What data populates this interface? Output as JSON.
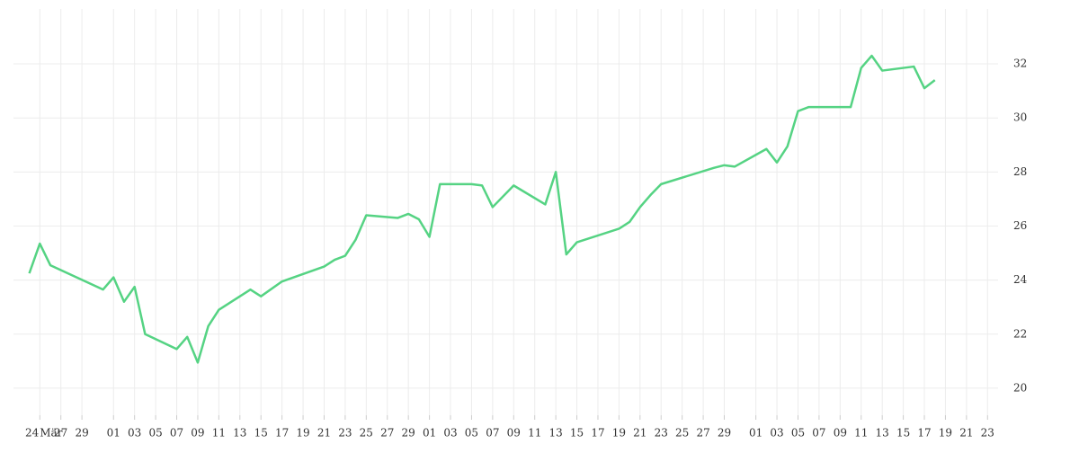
{
  "chart_data": {
    "type": "line",
    "x": [
      -1,
      0,
      1,
      6,
      7,
      8,
      9,
      10,
      13,
      14,
      15,
      16,
      17,
      20,
      21,
      23,
      27,
      28,
      29,
      30,
      31,
      34,
      35,
      36,
      37,
      38,
      41,
      42,
      43,
      45,
      48,
      49,
      50,
      51,
      55,
      56,
      57,
      58,
      59,
      64,
      65,
      66,
      69,
      70,
      71,
      72,
      73,
      77,
      78,
      79,
      80,
      83,
      84,
      85
    ],
    "series": [
      {
        "color": "#55d383",
        "values": [
          24.25,
          25.35,
          24.55,
          23.65,
          24.1,
          23.2,
          23.75,
          22.0,
          21.45,
          21.9,
          20.95,
          22.3,
          22.9,
          23.65,
          23.4,
          23.95,
          24.5,
          24.75,
          24.9,
          25.5,
          26.4,
          26.3,
          26.45,
          26.25,
          25.6,
          27.55,
          27.55,
          27.5,
          26.7,
          27.5,
          26.8,
          28.0,
          24.95,
          25.4,
          25.9,
          26.15,
          26.7,
          27.15,
          27.55,
          28.15,
          28.25,
          28.2,
          28.85,
          28.35,
          28.95,
          30.25,
          30.4,
          30.4,
          31.85,
          32.3,
          31.75,
          31.9,
          31.1,
          31.4
        ]
      }
    ],
    "x_year_label": "24",
    "xlim": [
      -2.5,
      91
    ],
    "xticks": [
      {
        "value": 0,
        "label": "Mär"
      },
      {
        "value": 2,
        "label": "27"
      },
      {
        "value": 4,
        "label": "29"
      },
      {
        "value": 7,
        "label": "01"
      },
      {
        "value": 9,
        "label": "03"
      },
      {
        "value": 11,
        "label": "05"
      },
      {
        "value": 13,
        "label": "07"
      },
      {
        "value": 15,
        "label": "09"
      },
      {
        "value": 17,
        "label": "11"
      },
      {
        "value": 19,
        "label": "13"
      },
      {
        "value": 21,
        "label": "15"
      },
      {
        "value": 23,
        "label": "17"
      },
      {
        "value": 25,
        "label": "19"
      },
      {
        "value": 27,
        "label": "21"
      },
      {
        "value": 29,
        "label": "23"
      },
      {
        "value": 31,
        "label": "25"
      },
      {
        "value": 33,
        "label": "27"
      },
      {
        "value": 35,
        "label": "29"
      },
      {
        "value": 37,
        "label": "01"
      },
      {
        "value": 39,
        "label": "03"
      },
      {
        "value": 41,
        "label": "05"
      },
      {
        "value": 43,
        "label": "07"
      },
      {
        "value": 45,
        "label": "09"
      },
      {
        "value": 47,
        "label": "11"
      },
      {
        "value": 49,
        "label": "13"
      },
      {
        "value": 51,
        "label": "15"
      },
      {
        "value": 53,
        "label": "17"
      },
      {
        "value": 55,
        "label": "19"
      },
      {
        "value": 57,
        "label": "21"
      },
      {
        "value": 59,
        "label": "23"
      },
      {
        "value": 61,
        "label": "25"
      },
      {
        "value": 63,
        "label": "27"
      },
      {
        "value": 65,
        "label": "29"
      },
      {
        "value": 68,
        "label": "01"
      },
      {
        "value": 70,
        "label": "03"
      },
      {
        "value": 72,
        "label": "05"
      },
      {
        "value": 74,
        "label": "07"
      },
      {
        "value": 76,
        "label": "09"
      },
      {
        "value": 78,
        "label": "11"
      },
      {
        "value": 80,
        "label": "13"
      },
      {
        "value": 82,
        "label": "15"
      },
      {
        "value": 84,
        "label": "17"
      },
      {
        "value": 86,
        "label": "19"
      },
      {
        "value": 88,
        "label": "21"
      },
      {
        "value": 90,
        "label": "23"
      }
    ],
    "ylim": [
      19,
      34.03
    ],
    "yticks": [
      20,
      22,
      24,
      26,
      28,
      30,
      32
    ],
    "grid": true
  }
}
